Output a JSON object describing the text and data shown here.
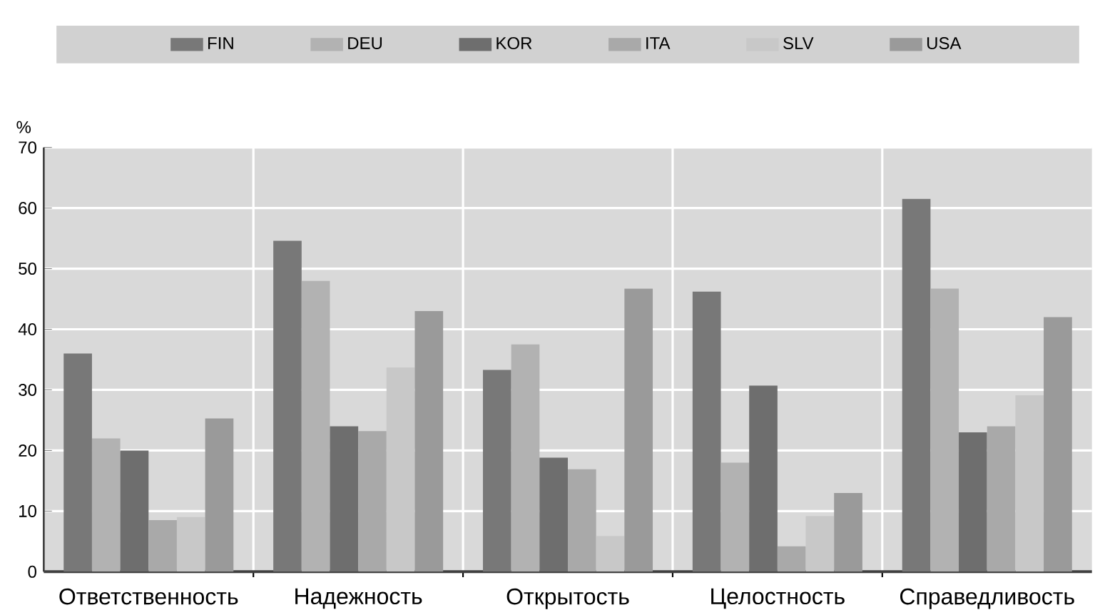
{
  "chart_data": {
    "type": "bar",
    "ylabel": "%",
    "categories": [
      "Ответственность",
      "Надежность",
      "Открытость",
      "Целостность",
      "Справедливость"
    ],
    "series": [
      {
        "name": "FIN",
        "color": "#787878",
        "values": [
          36,
          54.6,
          33.3,
          46.2,
          61.5
        ]
      },
      {
        "name": "DEU",
        "color": "#b2b2b2",
        "values": [
          22,
          48,
          37.5,
          18,
          46.7
        ]
      },
      {
        "name": "KOR",
        "color": "#6e6e6e",
        "values": [
          20,
          24,
          18.8,
          30.7,
          23
        ]
      },
      {
        "name": "ITA",
        "color": "#a9a9a9",
        "values": [
          8.5,
          23.2,
          16.9,
          4.2,
          24
        ]
      },
      {
        "name": "SLV",
        "color": "#c8c8c8",
        "values": [
          9,
          33.7,
          5.9,
          9.2,
          29.1
        ]
      },
      {
        "name": "USA",
        "color": "#9a9a9a",
        "values": [
          25.3,
          43,
          46.7,
          13,
          42
        ]
      }
    ],
    "ylim": [
      0,
      70
    ],
    "yticks": [
      0,
      10,
      20,
      30,
      40,
      50,
      60,
      70
    ],
    "grid": "y",
    "legend": "top"
  }
}
